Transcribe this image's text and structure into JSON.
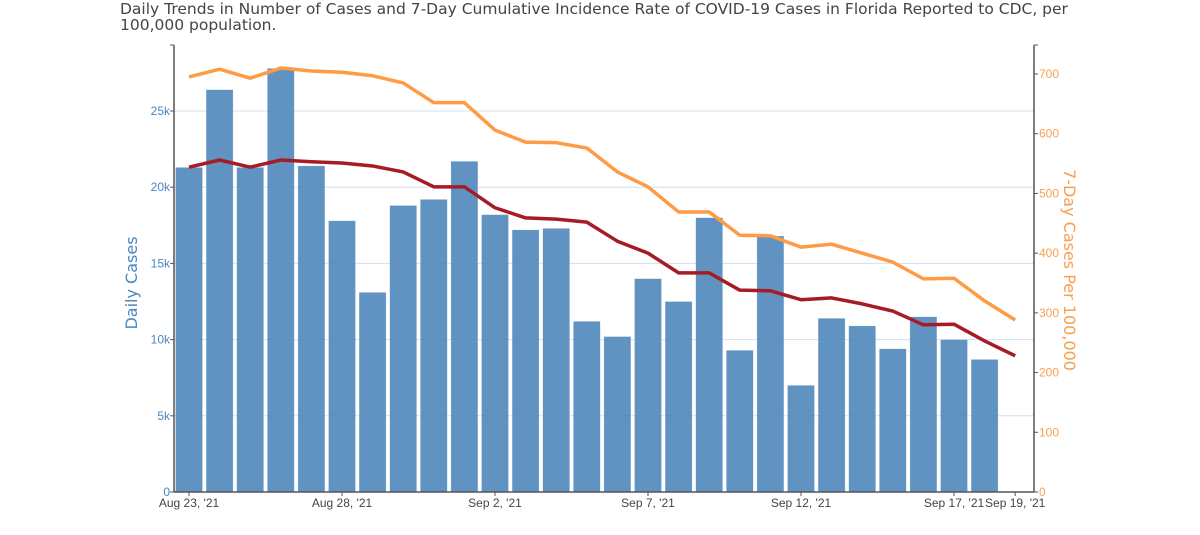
{
  "chart_data": {
    "type": "bar",
    "title": "Daily Trends in Number of Cases and 7-Day Cumulative Incidence Rate of COVID-19 Cases in Florida Reported to CDC, per 100,000 population.",
    "xlabel": "",
    "ylabel": "Daily Cases",
    "y2label": "7-Day Cases Per 100,000",
    "ylim": [
      0,
      29300
    ],
    "y2lim": [
      0,
      735
    ],
    "yticks": [
      0,
      5000,
      10000,
      15000,
      20000,
      25000
    ],
    "ytick_labels": [
      "0",
      "5k",
      "10k",
      "15k",
      "20k",
      "25k"
    ],
    "y2ticks": [
      0,
      100,
      200,
      300,
      400,
      500,
      600,
      700
    ],
    "y2tick_labels": [
      "0",
      "100",
      "200",
      "300",
      "400",
      "500",
      "600",
      "700"
    ],
    "xtick_labels": [
      {
        "index": 0,
        "label": "Aug 23, '21"
      },
      {
        "index": 5,
        "label": "Aug 28, '21"
      },
      {
        "index": 10,
        "label": "Sep 2, '21"
      },
      {
        "index": 15,
        "label": "Sep 7, '21"
      },
      {
        "index": 20,
        "label": "Sep 12, '21"
      },
      {
        "index": 25,
        "label": "Sep 17, '21"
      },
      {
        "index": 27,
        "label": "Sep 19, '21"
      }
    ],
    "grid": true,
    "legend": "none",
    "categories": [
      "2021-08-23",
      "2021-08-24",
      "2021-08-25",
      "2021-08-26",
      "2021-08-27",
      "2021-08-28",
      "2021-08-29",
      "2021-08-30",
      "2021-08-31",
      "2021-09-01",
      "2021-09-02",
      "2021-09-03",
      "2021-09-04",
      "2021-09-05",
      "2021-09-06",
      "2021-09-07",
      "2021-09-08",
      "2021-09-09",
      "2021-09-10",
      "2021-09-11",
      "2021-09-12",
      "2021-09-13",
      "2021-09-14",
      "2021-09-15",
      "2021-09-16",
      "2021-09-17",
      "2021-09-18",
      "2021-09-19"
    ],
    "series": [
      {
        "name": "Daily Cases",
        "type": "bar",
        "axis": "left",
        "color": "#4f86bb",
        "values": [
          21300,
          26400,
          21300,
          27800,
          21400,
          17800,
          13100,
          18800,
          19200,
          21700,
          18200,
          17200,
          17300,
          11200,
          10200,
          14000,
          12500,
          18000,
          9300,
          16800,
          7000,
          11400,
          10900,
          9400,
          11500,
          10000,
          8700,
          null
        ]
      },
      {
        "name": "7-Day Cases Per 100,000 (orange)",
        "type": "line",
        "axis": "right",
        "color": "#ff9a45",
        "values": [
          695,
          708,
          693,
          710,
          705,
          703,
          697,
          685,
          652,
          652,
          606,
          586,
          585,
          576,
          536,
          511,
          469,
          469,
          430,
          429,
          410,
          415,
          400,
          385,
          357,
          358,
          320,
          288
        ]
      },
      {
        "name": "7-Day Cases Per 100,000 (red)",
        "type": "line",
        "axis": "right",
        "color": "#a51c24",
        "values": [
          544,
          556,
          544,
          556,
          553,
          551,
          546,
          536,
          511,
          511,
          476,
          459,
          457,
          452,
          420,
          400,
          367,
          367,
          338,
          337,
          322,
          325,
          315,
          303,
          280,
          281,
          253,
          228
        ]
      }
    ]
  }
}
